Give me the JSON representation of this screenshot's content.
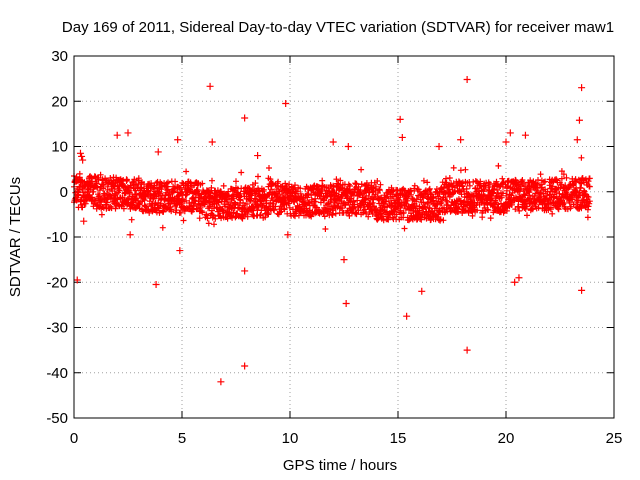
{
  "chart_data": {
    "type": "scatter",
    "title": "Day 169 of 2011, Sidereal Day-to-day VTEC variation (SDTVAR) for receiver maw1",
    "xlabel": "GPS time / hours",
    "ylabel": "SDTVAR / TECUs",
    "xlim": [
      0,
      25
    ],
    "ylim": [
      -50,
      30
    ],
    "xticks": [
      "0",
      "5",
      "10",
      "15",
      "20",
      "25"
    ],
    "yticks": [
      "30",
      "20",
      "10",
      "0",
      "-10",
      "-20",
      "-30",
      "-40",
      "-50"
    ],
    "grid": true,
    "legend": "none",
    "series": [
      {
        "name": "SDTVAR",
        "color": "#ff0000",
        "marker": "plus",
        "note": "dense band of ~thousands of points between about -7 and +3 TECU across 0-24 h; listed below are representative band points and distinct outliers",
        "points": [
          [
            0.15,
            -19.5
          ],
          [
            0.3,
            8.5
          ],
          [
            0.35,
            7.8
          ],
          [
            0.4,
            7.0
          ],
          [
            0.45,
            -6.5
          ],
          [
            2.0,
            12.5
          ],
          [
            2.5,
            13.0
          ],
          [
            2.6,
            -9.5
          ],
          [
            3.8,
            -20.5
          ],
          [
            3.9,
            8.8
          ],
          [
            4.8,
            11.5
          ],
          [
            4.9,
            -13.0
          ],
          [
            6.3,
            23.3
          ],
          [
            6.4,
            11.0
          ],
          [
            6.8,
            -42.0
          ],
          [
            7.9,
            16.3
          ],
          [
            7.9,
            -17.5
          ],
          [
            7.9,
            -38.5
          ],
          [
            8.5,
            8.0
          ],
          [
            9.8,
            19.5
          ],
          [
            9.9,
            -9.5
          ],
          [
            12.0,
            11.0
          ],
          [
            12.6,
            -24.7
          ],
          [
            12.5,
            -15.0
          ],
          [
            12.7,
            10.0
          ],
          [
            15.1,
            16.0
          ],
          [
            15.2,
            12.0
          ],
          [
            15.4,
            -27.5
          ],
          [
            16.1,
            -22.0
          ],
          [
            16.9,
            10.0
          ],
          [
            18.2,
            24.8
          ],
          [
            18.2,
            -35.0
          ],
          [
            17.9,
            11.5
          ],
          [
            20.0,
            11.0
          ],
          [
            20.2,
            13.0
          ],
          [
            20.4,
            -20.0
          ],
          [
            20.6,
            -19.0
          ],
          [
            20.9,
            12.5
          ],
          [
            23.5,
            23.0
          ],
          [
            23.4,
            15.8
          ],
          [
            23.5,
            -21.8
          ],
          [
            23.3,
            11.5
          ]
        ]
      }
    ]
  }
}
